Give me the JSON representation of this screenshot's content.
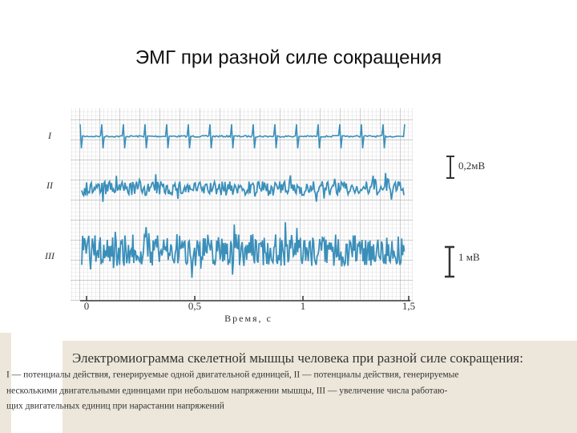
{
  "header": {
    "title": "ЭМГ при разной силе сокращения"
  },
  "figure": {
    "trace_labels": [
      "I",
      "II",
      "III"
    ],
    "scale_labels": [
      "0,2мВ",
      "1 мВ"
    ],
    "axis_ticks": [
      "0",
      "0,5",
      "1",
      "1,5"
    ],
    "axis_label": "Время, с"
  },
  "caption": {
    "title": "Электромиограмма скелетной мышцы человека при разной силе сокращения:",
    "lines": [
      "I — потенциалы действия, генерируемые одной двигательной единицей, II — потенциалы действия, генерируемые",
      "несколькими двигательными единицами при небольшом напряжении мышцы, III — увеличение числа работаю-",
      "щих двигательных единиц при нарастании напряжений"
    ]
  }
}
